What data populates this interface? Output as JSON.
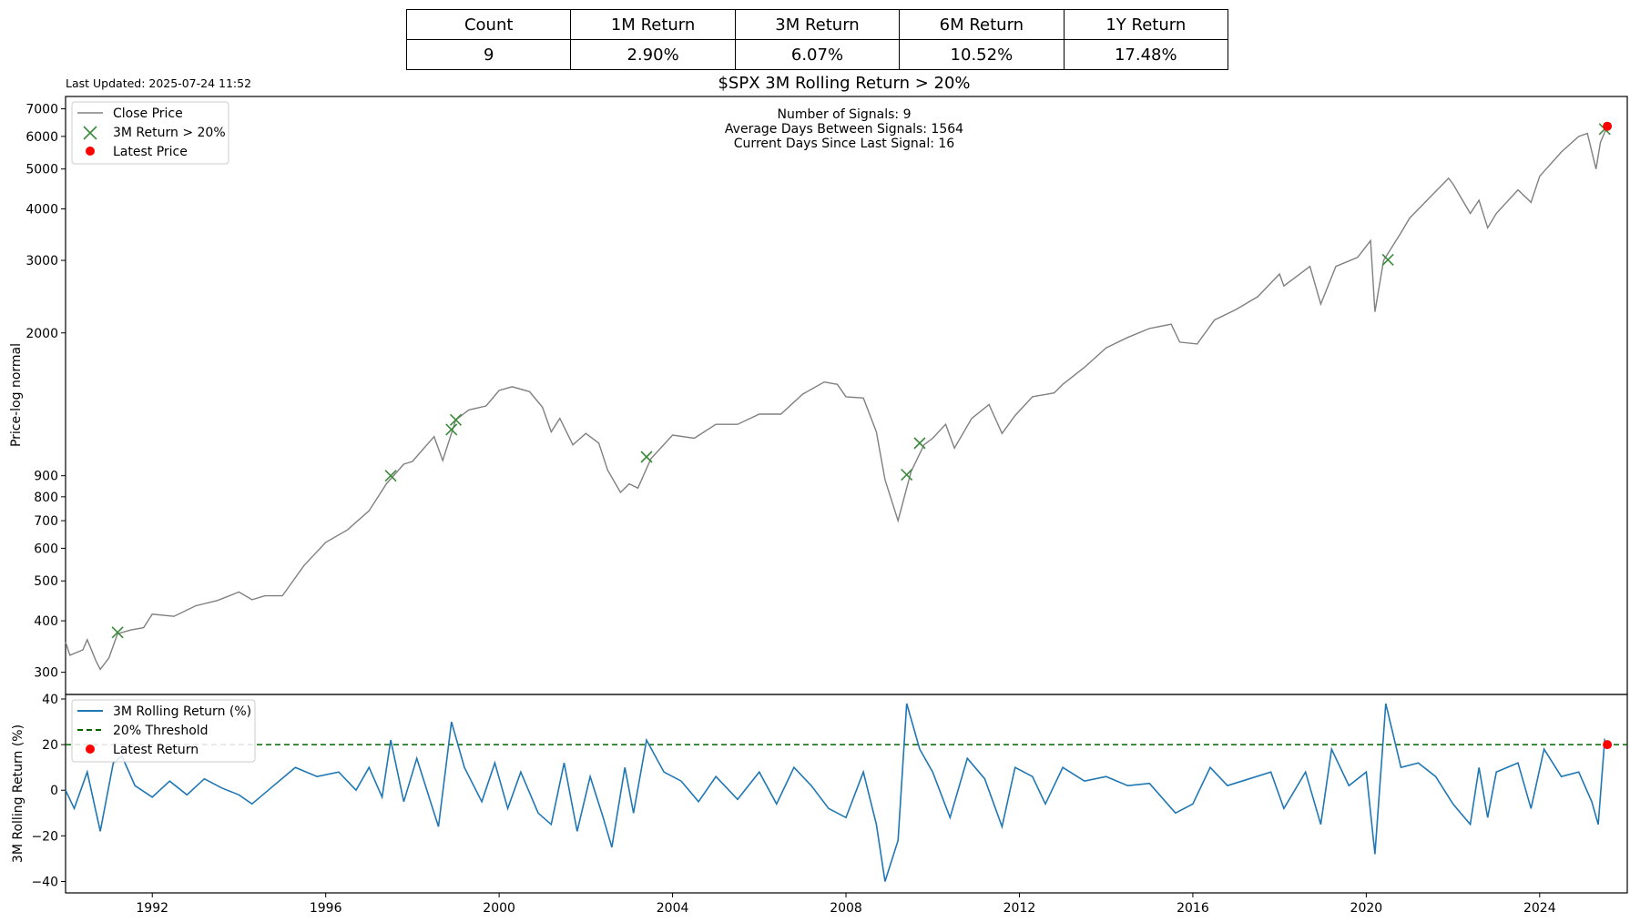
{
  "summary_table": {
    "headers": [
      "Count",
      "1M Return",
      "3M Return",
      "6M Return",
      "1Y Return"
    ],
    "values": [
      "9",
      "2.90%",
      "6.07%",
      "10.52%",
      "17.48%"
    ]
  },
  "last_updated": "Last Updated: 2025-07-24 11:52",
  "colors": {
    "price_line": "#808080",
    "signal_marker": "#3a8a3a",
    "latest_marker": "#ff0000",
    "return_line": "#1f77b4",
    "threshold_line": "#006400"
  },
  "chart_data": [
    {
      "type": "line",
      "title": "$SPX 3M Rolling Return > 20%",
      "ylabel": "Price-log normal",
      "yscale": "log",
      "ylim": [
        265,
        7500
      ],
      "xlim": [
        1990.0,
        2025.6
      ],
      "yticks": [
        300,
        400,
        500,
        600,
        700,
        800,
        900,
        2000,
        3000,
        4000,
        5000,
        6000,
        7000
      ],
      "annotations": [
        "Number of Signals: 9",
        "Average Days Between Signals: 1564",
        "Current Days Since Last Signal: 16"
      ],
      "legend": {
        "placement": "top-left",
        "entries": [
          "Close Price",
          "3M Return > 20%",
          "Latest Price"
        ]
      },
      "series": [
        {
          "name": "Close Price",
          "points": [
            [
              1990.0,
              355
            ],
            [
              1990.1,
              330
            ],
            [
              1990.4,
              340
            ],
            [
              1990.5,
              360
            ],
            [
              1990.7,
              320
            ],
            [
              1990.8,
              305
            ],
            [
              1991.0,
              325
            ],
            [
              1991.2,
              372
            ],
            [
              1991.5,
              380
            ],
            [
              1991.8,
              385
            ],
            [
              1992.0,
              415
            ],
            [
              1992.5,
              410
            ],
            [
              1993.0,
              435
            ],
            [
              1993.5,
              448
            ],
            [
              1994.0,
              470
            ],
            [
              1994.3,
              450
            ],
            [
              1994.6,
              460
            ],
            [
              1995.0,
              460
            ],
            [
              1995.5,
              545
            ],
            [
              1996.0,
              620
            ],
            [
              1996.5,
              665
            ],
            [
              1997.0,
              740
            ],
            [
              1997.4,
              860
            ],
            [
              1997.8,
              960
            ],
            [
              1998.0,
              975
            ],
            [
              1998.5,
              1120
            ],
            [
              1998.7,
              980
            ],
            [
              1999.0,
              1230
            ],
            [
              1999.3,
              1300
            ],
            [
              1999.7,
              1330
            ],
            [
              2000.0,
              1450
            ],
            [
              2000.3,
              1480
            ],
            [
              2000.7,
              1440
            ],
            [
              2001.0,
              1320
            ],
            [
              2001.2,
              1150
            ],
            [
              2001.4,
              1240
            ],
            [
              2001.7,
              1070
            ],
            [
              2002.0,
              1140
            ],
            [
              2002.3,
              1080
            ],
            [
              2002.5,
              930
            ],
            [
              2002.8,
              820
            ],
            [
              2003.0,
              860
            ],
            [
              2003.2,
              840
            ],
            [
              2003.5,
              990
            ],
            [
              2004.0,
              1130
            ],
            [
              2004.5,
              1110
            ],
            [
              2005.0,
              1200
            ],
            [
              2005.5,
              1200
            ],
            [
              2006.0,
              1270
            ],
            [
              2006.5,
              1270
            ],
            [
              2007.0,
              1420
            ],
            [
              2007.5,
              1520
            ],
            [
              2007.8,
              1500
            ],
            [
              2008.0,
              1400
            ],
            [
              2008.4,
              1390
            ],
            [
              2008.7,
              1150
            ],
            [
              2008.9,
              880
            ],
            [
              2009.2,
              700
            ],
            [
              2009.5,
              920
            ],
            [
              2009.8,
              1070
            ],
            [
              2010.0,
              1110
            ],
            [
              2010.3,
              1200
            ],
            [
              2010.5,
              1050
            ],
            [
              2010.9,
              1240
            ],
            [
              2011.3,
              1340
            ],
            [
              2011.6,
              1140
            ],
            [
              2011.9,
              1260
            ],
            [
              2012.3,
              1400
            ],
            [
              2012.8,
              1430
            ],
            [
              2013.0,
              1500
            ],
            [
              2013.5,
              1650
            ],
            [
              2014.0,
              1840
            ],
            [
              2014.5,
              1950
            ],
            [
              2015.0,
              2050
            ],
            [
              2015.5,
              2100
            ],
            [
              2015.7,
              1900
            ],
            [
              2016.1,
              1880
            ],
            [
              2016.5,
              2150
            ],
            [
              2017.0,
              2280
            ],
            [
              2017.5,
              2450
            ],
            [
              2018.0,
              2780
            ],
            [
              2018.1,
              2600
            ],
            [
              2018.7,
              2900
            ],
            [
              2018.95,
              2350
            ],
            [
              2019.3,
              2900
            ],
            [
              2019.8,
              3050
            ],
            [
              2020.1,
              3350
            ],
            [
              2020.2,
              2250
            ],
            [
              2020.4,
              3000
            ],
            [
              2020.8,
              3500
            ],
            [
              2021.0,
              3800
            ],
            [
              2021.5,
              4300
            ],
            [
              2021.9,
              4750
            ],
            [
              2022.0,
              4600
            ],
            [
              2022.4,
              3900
            ],
            [
              2022.6,
              4200
            ],
            [
              2022.8,
              3600
            ],
            [
              2023.0,
              3900
            ],
            [
              2023.5,
              4450
            ],
            [
              2023.8,
              4150
            ],
            [
              2024.0,
              4800
            ],
            [
              2024.5,
              5500
            ],
            [
              2024.9,
              6000
            ],
            [
              2025.1,
              6100
            ],
            [
              2025.3,
              5000
            ],
            [
              2025.4,
              5800
            ],
            [
              2025.56,
              6350
            ]
          ]
        },
        {
          "name": "3M Return > 20%",
          "points": [
            [
              1991.2,
              375
            ],
            [
              1997.5,
              900
            ],
            [
              1998.9,
              1165
            ],
            [
              1999.0,
              1230
            ],
            [
              2003.4,
              1000
            ],
            [
              2009.4,
              905
            ],
            [
              2009.7,
              1080
            ],
            [
              2020.5,
              3010
            ],
            [
              2025.5,
              6250
            ]
          ]
        },
        {
          "name": "Latest Price",
          "points": [
            [
              2025.56,
              6350
            ]
          ]
        }
      ]
    },
    {
      "type": "line",
      "ylabel": "3M Rolling Return (%)",
      "ylim": [
        -45,
        42
      ],
      "xlim": [
        1990.0,
        2025.6
      ],
      "yticks": [
        -40,
        -20,
        0,
        20,
        40
      ],
      "xticks": [
        1992,
        1996,
        2000,
        2004,
        2008,
        2012,
        2016,
        2020,
        2024
      ],
      "legend": {
        "placement": "top-left",
        "entries": [
          "3M Rolling Return (%)",
          "20% Threshold",
          "Latest Return"
        ]
      },
      "series": [
        {
          "name": "3M Rolling Return (%)",
          "points": [
            [
              1990.0,
              0
            ],
            [
              1990.2,
              -8
            ],
            [
              1990.5,
              8
            ],
            [
              1990.8,
              -18
            ],
            [
              1991.1,
              12
            ],
            [
              1991.3,
              15
            ],
            [
              1991.6,
              2
            ],
            [
              1992.0,
              -3
            ],
            [
              1992.4,
              4
            ],
            [
              1992.8,
              -2
            ],
            [
              1993.2,
              5
            ],
            [
              1993.6,
              1
            ],
            [
              1994.0,
              -2
            ],
            [
              1994.3,
              -6
            ],
            [
              1994.8,
              2
            ],
            [
              1995.3,
              10
            ],
            [
              1995.8,
              6
            ],
            [
              1996.3,
              8
            ],
            [
              1996.7,
              0
            ],
            [
              1997.0,
              10
            ],
            [
              1997.3,
              -3
            ],
            [
              1997.5,
              22
            ],
            [
              1997.8,
              -5
            ],
            [
              1998.1,
              14
            ],
            [
              1998.6,
              -16
            ],
            [
              1998.9,
              30
            ],
            [
              1999.2,
              10
            ],
            [
              1999.6,
              -5
            ],
            [
              1999.9,
              12
            ],
            [
              2000.2,
              -8
            ],
            [
              2000.5,
              8
            ],
            [
              2000.9,
              -10
            ],
            [
              2001.2,
              -15
            ],
            [
              2001.5,
              12
            ],
            [
              2001.8,
              -18
            ],
            [
              2002.1,
              6
            ],
            [
              2002.4,
              -12
            ],
            [
              2002.6,
              -25
            ],
            [
              2002.9,
              10
            ],
            [
              2003.1,
              -10
            ],
            [
              2003.4,
              22
            ],
            [
              2003.8,
              8
            ],
            [
              2004.2,
              4
            ],
            [
              2004.6,
              -5
            ],
            [
              2005.0,
              6
            ],
            [
              2005.5,
              -4
            ],
            [
              2006.0,
              8
            ],
            [
              2006.4,
              -6
            ],
            [
              2006.8,
              10
            ],
            [
              2007.2,
              2
            ],
            [
              2007.6,
              -8
            ],
            [
              2008.0,
              -12
            ],
            [
              2008.4,
              8
            ],
            [
              2008.7,
              -15
            ],
            [
              2008.9,
              -40
            ],
            [
              2009.2,
              -22
            ],
            [
              2009.4,
              38
            ],
            [
              2009.7,
              18
            ],
            [
              2010.0,
              8
            ],
            [
              2010.4,
              -12
            ],
            [
              2010.8,
              14
            ],
            [
              2011.2,
              5
            ],
            [
              2011.6,
              -16
            ],
            [
              2011.9,
              10
            ],
            [
              2012.3,
              6
            ],
            [
              2012.6,
              -6
            ],
            [
              2013.0,
              10
            ],
            [
              2013.5,
              4
            ],
            [
              2014.0,
              6
            ],
            [
              2014.5,
              2
            ],
            [
              2015.0,
              3
            ],
            [
              2015.6,
              -10
            ],
            [
              2016.0,
              -6
            ],
            [
              2016.4,
              10
            ],
            [
              2016.8,
              2
            ],
            [
              2017.3,
              5
            ],
            [
              2017.8,
              8
            ],
            [
              2018.1,
              -8
            ],
            [
              2018.6,
              8
            ],
            [
              2018.95,
              -15
            ],
            [
              2019.2,
              18
            ],
            [
              2019.6,
              2
            ],
            [
              2020.0,
              8
            ],
            [
              2020.2,
              -28
            ],
            [
              2020.45,
              38
            ],
            [
              2020.8,
              10
            ],
            [
              2021.2,
              12
            ],
            [
              2021.6,
              6
            ],
            [
              2022.0,
              -6
            ],
            [
              2022.4,
              -15
            ],
            [
              2022.6,
              10
            ],
            [
              2022.8,
              -12
            ],
            [
              2023.0,
              8
            ],
            [
              2023.5,
              12
            ],
            [
              2023.8,
              -8
            ],
            [
              2024.1,
              18
            ],
            [
              2024.5,
              6
            ],
            [
              2024.9,
              8
            ],
            [
              2025.2,
              -5
            ],
            [
              2025.35,
              -15
            ],
            [
              2025.5,
              22
            ],
            [
              2025.56,
              20
            ]
          ]
        },
        {
          "name": "20% Threshold",
          "points": [
            [
              1990.0,
              20
            ],
            [
              2025.6,
              20
            ]
          ]
        },
        {
          "name": "Latest Return",
          "points": [
            [
              2025.56,
              20
            ]
          ]
        }
      ]
    }
  ]
}
